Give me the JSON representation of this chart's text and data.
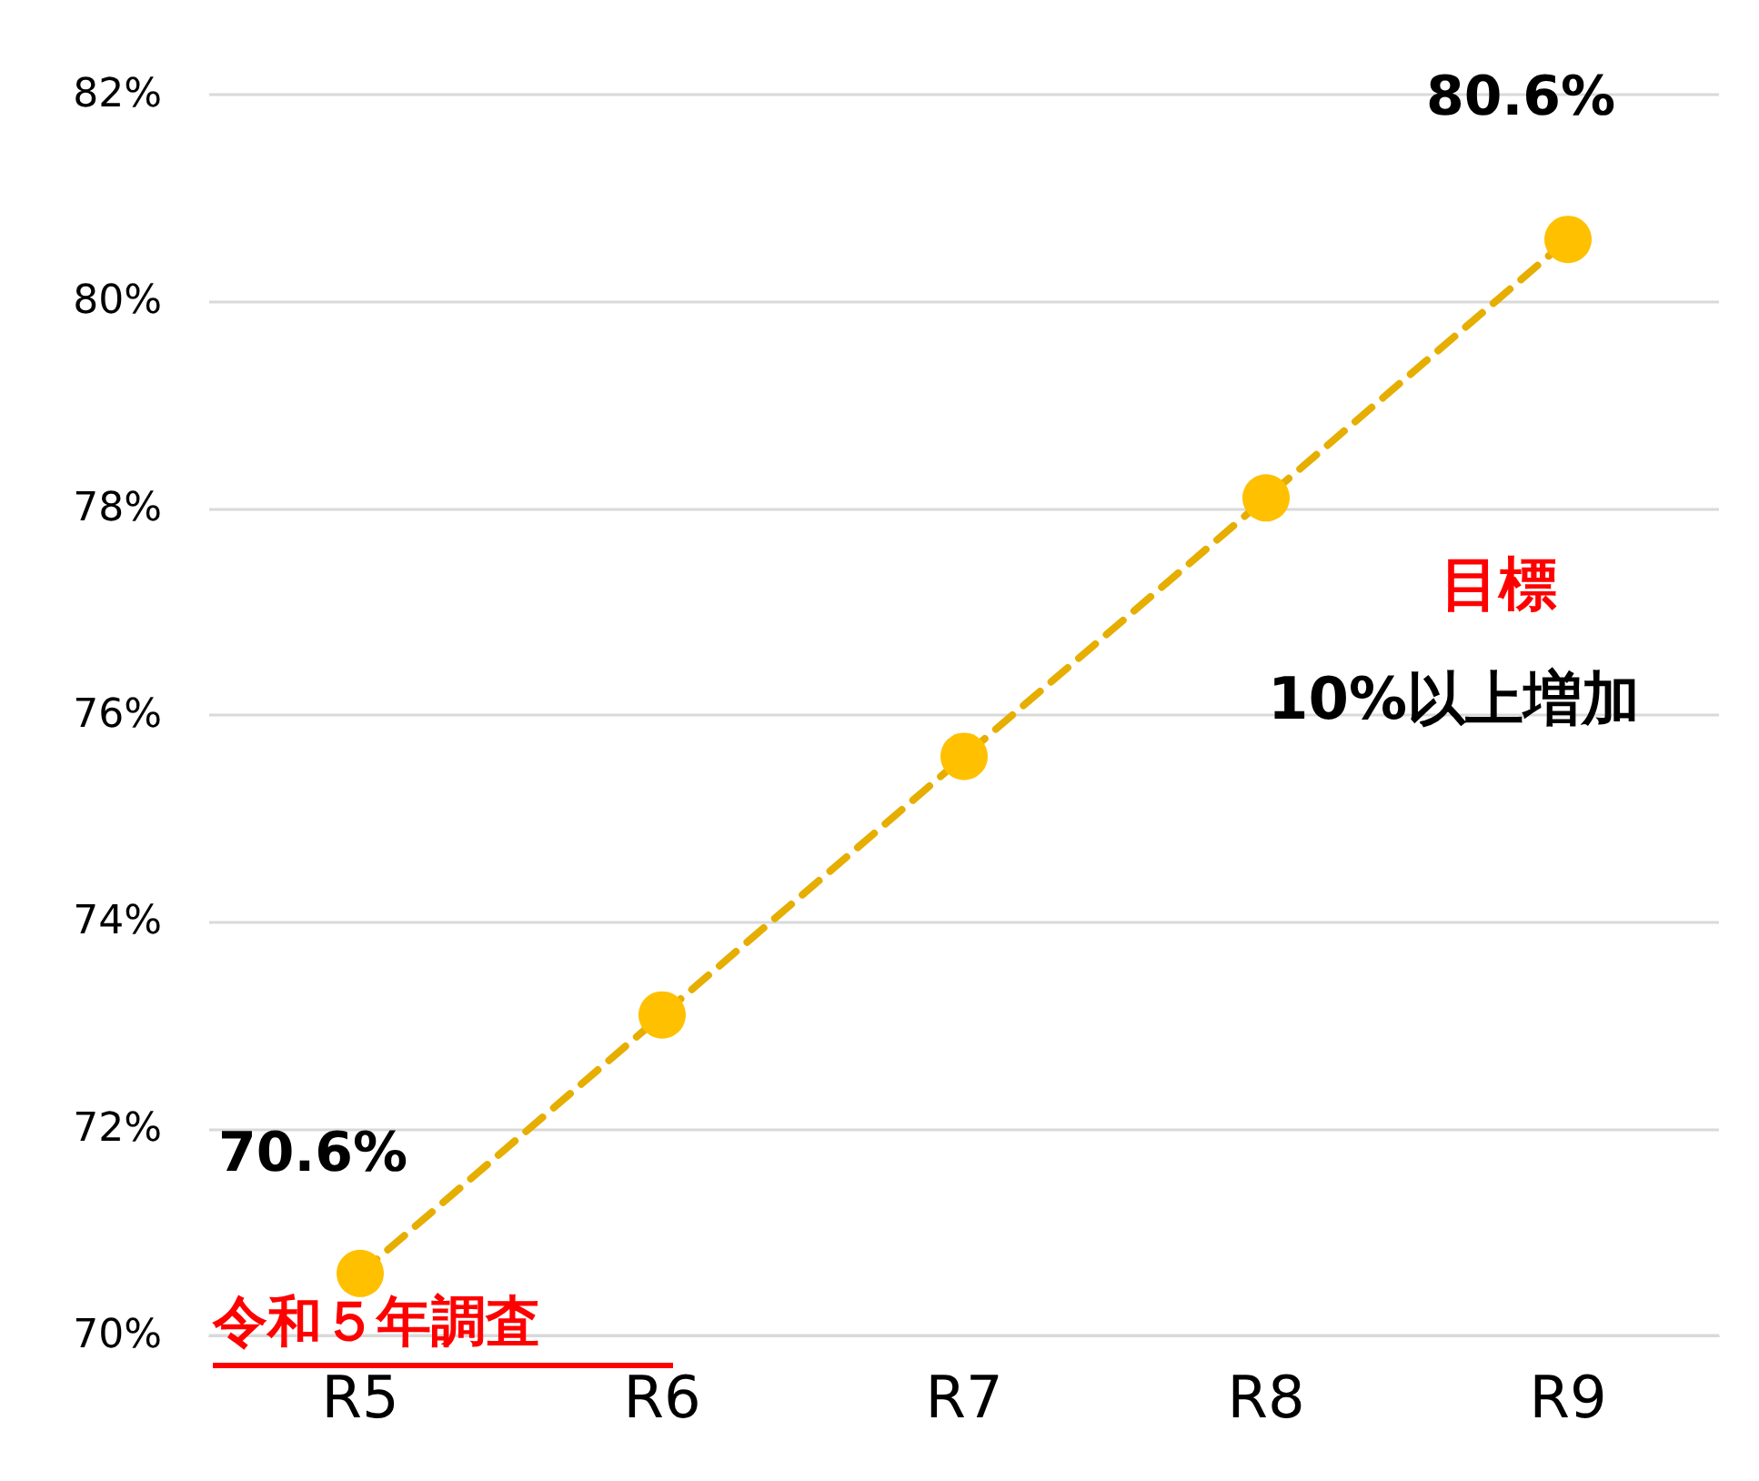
{
  "chart_data": {
    "type": "line",
    "categories": [
      "R5",
      "R6",
      "R7",
      "R8",
      "R9"
    ],
    "series": [
      {
        "color": "#ffc000",
        "values": [
          70.6,
          73.1,
          75.6,
          78.1,
          80.6
        ],
        "value_labels": [
          "70.6%",
          null,
          null,
          null,
          "80.6%"
        ]
      }
    ],
    "ylim": [
      70,
      82
    ],
    "yticks": [
      {
        "value": 70,
        "label": "70%"
      },
      {
        "value": 72,
        "label": "72%"
      },
      {
        "value": 74,
        "label": "74%"
      },
      {
        "value": 76,
        "label": "76%"
      },
      {
        "value": 78,
        "label": "78%"
      },
      {
        "value": 80,
        "label": "80%"
      },
      {
        "value": 82,
        "label": "82%"
      }
    ],
    "grid": "y",
    "marker": "circle",
    "line_style": "dashed",
    "annotations": [
      "目標",
      "10%以上増加",
      "令和５年調査"
    ]
  }
}
